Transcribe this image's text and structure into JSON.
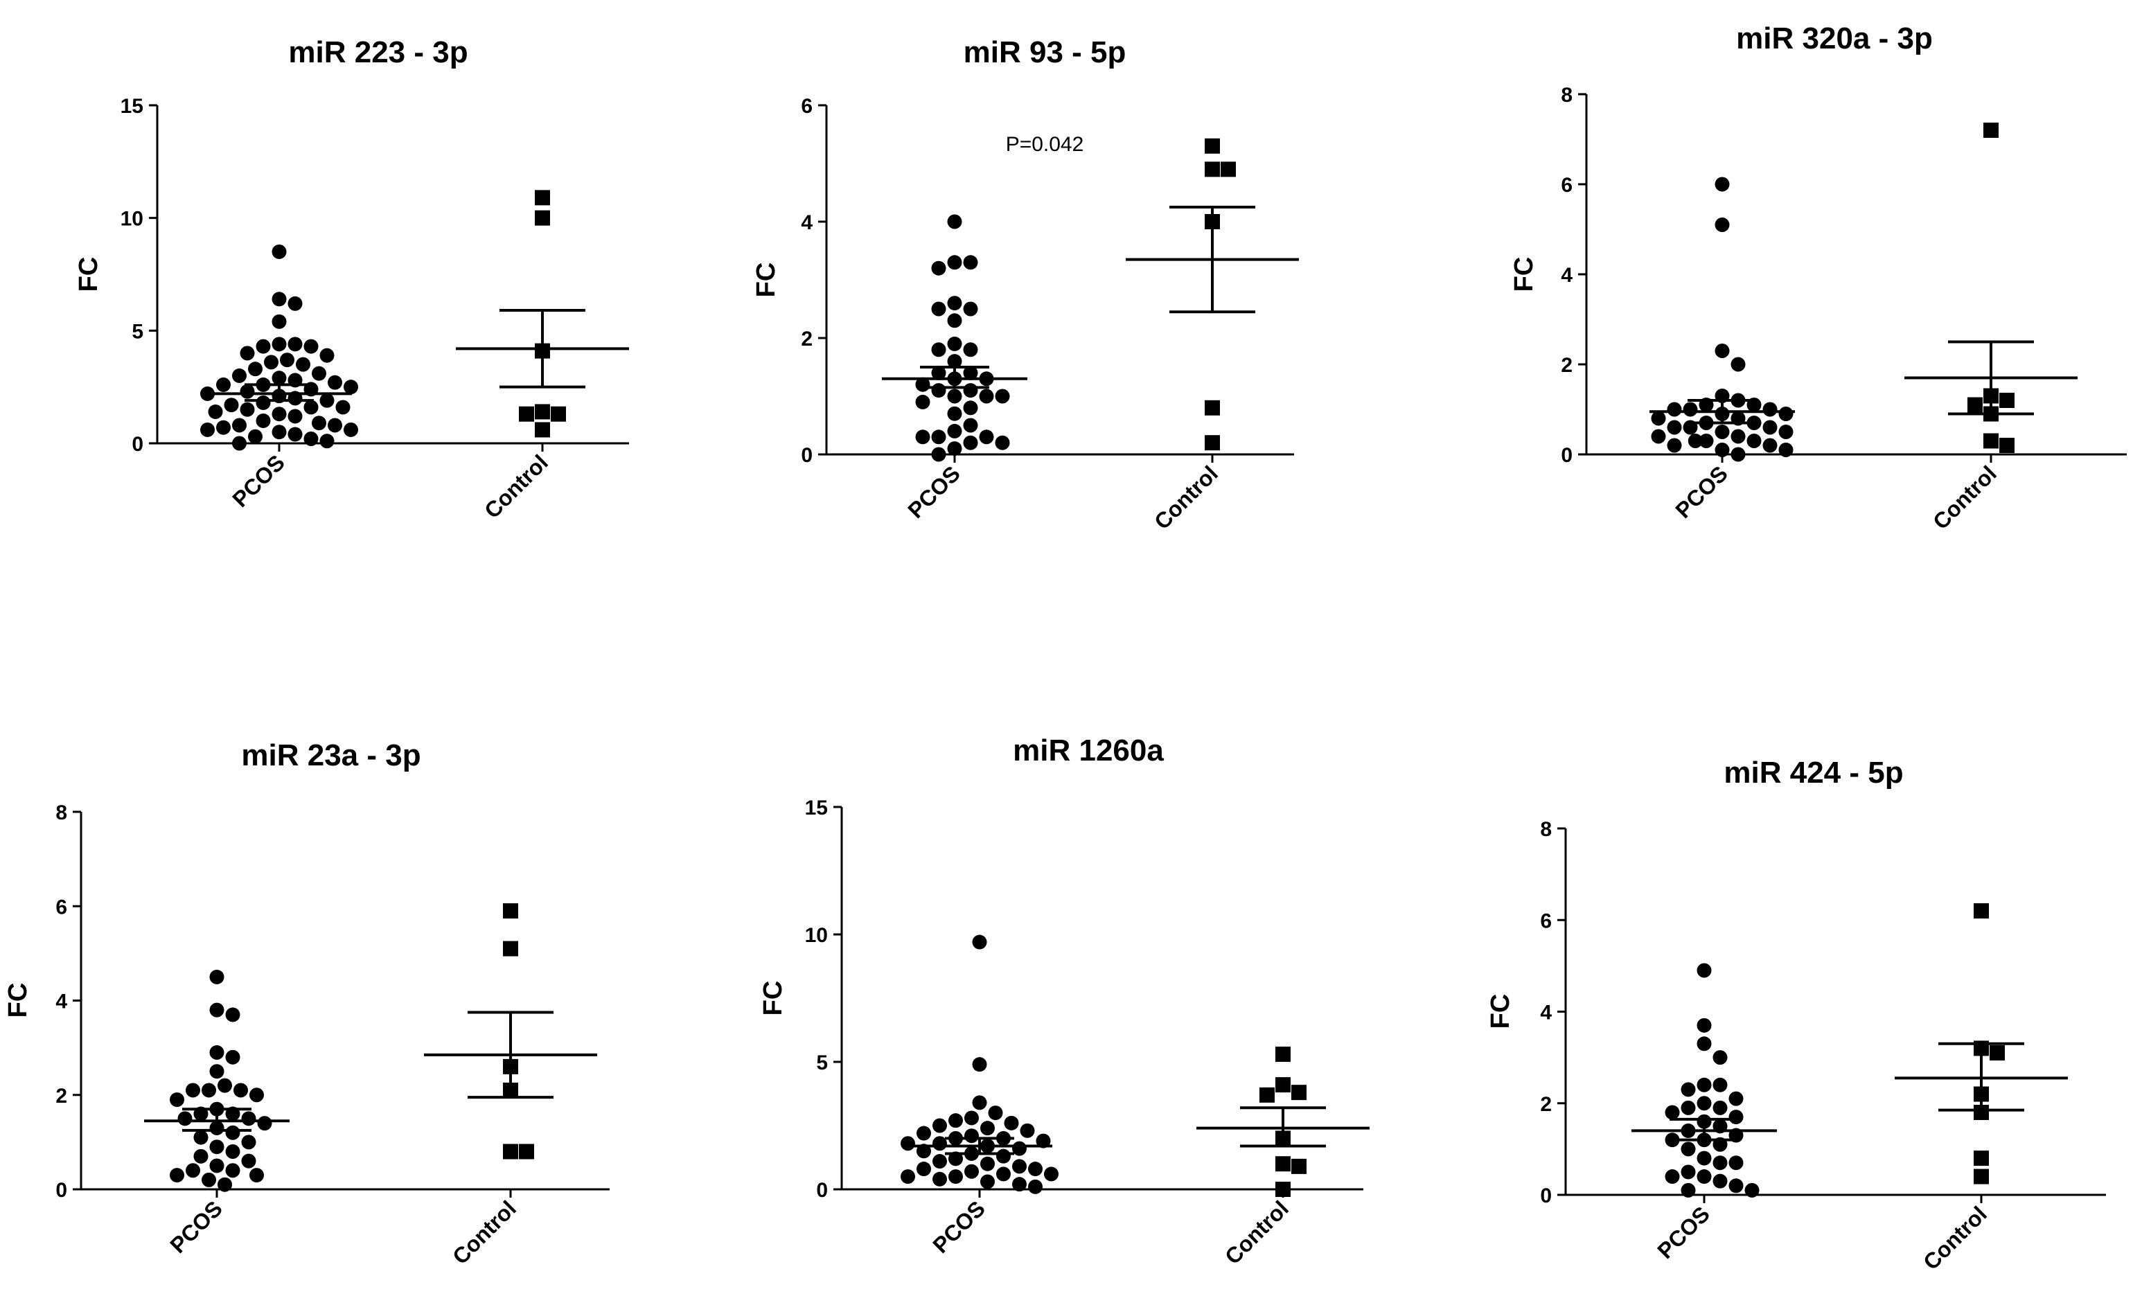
{
  "colors": {
    "ink": "#000000",
    "background": "#ffffff"
  },
  "chart_data": [
    {
      "type": "scatter",
      "title": "miR 223 - 3p",
      "ylabel": "FC",
      "xlabel": "",
      "ylim": [
        0,
        15
      ],
      "yticks": [
        "0",
        "5",
        "10",
        "15"
      ],
      "categories": [
        "PCOS",
        "Control"
      ],
      "groups": [
        {
          "name": "PCOS",
          "marker": "circle",
          "values": [
            8.5,
            6.4,
            6.2,
            5.4,
            4.4,
            4.4,
            4.3,
            4.3,
            4.0,
            3.9,
            3.7,
            3.6,
            3.5,
            3.3,
            3.1,
            3.0,
            2.9,
            2.8,
            2.7,
            2.6,
            2.6,
            2.5,
            2.4,
            2.3,
            2.2,
            2.1,
            2.0,
            1.9,
            1.8,
            1.7,
            1.6,
            1.6,
            1.5,
            1.4,
            1.3,
            1.2,
            1.0,
            0.9,
            0.8,
            0.8,
            0.7,
            0.6,
            0.6,
            0.5,
            0.4,
            0.3,
            0.2,
            0.1,
            0.0
          ],
          "mean": 2.2,
          "sem_low": 1.9,
          "sem_high": 2.6
        },
        {
          "name": "Control",
          "marker": "square",
          "values": [
            10.9,
            10.0,
            4.1,
            1.4,
            1.3,
            1.3,
            0.6
          ],
          "mean": 4.2,
          "sem_low": 2.5,
          "sem_high": 5.9
        }
      ],
      "annotation": ""
    },
    {
      "type": "scatter",
      "title": "miR 93 - 5p",
      "ylabel": "FC",
      "xlabel": "",
      "ylim": [
        0,
        6
      ],
      "yticks": [
        "0",
        "2",
        "4",
        "6"
      ],
      "categories": [
        "PCOS",
        "Control"
      ],
      "groups": [
        {
          "name": "PCOS",
          "marker": "circle",
          "values": [
            4.0,
            3.3,
            3.3,
            3.2,
            2.6,
            2.5,
            2.5,
            2.3,
            1.9,
            1.8,
            1.8,
            1.6,
            1.4,
            1.4,
            1.3,
            1.3,
            1.2,
            1.1,
            1.1,
            1.0,
            1.0,
            1.0,
            0.9,
            0.8,
            0.7,
            0.5,
            0.4,
            0.3,
            0.3,
            0.3,
            0.2,
            0.2,
            0.1,
            0.0
          ],
          "mean": 1.3,
          "sem_low": 1.15,
          "sem_high": 1.5
        },
        {
          "name": "Control",
          "marker": "square",
          "values": [
            5.3,
            4.9,
            4.9,
            4.0,
            0.8,
            0.2
          ],
          "mean": 3.35,
          "sem_low": 2.45,
          "sem_high": 4.25
        }
      ],
      "annotation": "P=0.042"
    },
    {
      "type": "scatter",
      "title": "miR 320a - 3p",
      "ylabel": "FC",
      "xlabel": "",
      "ylim": [
        0,
        8
      ],
      "yticks": [
        "0",
        "2",
        "4",
        "6",
        "8"
      ],
      "categories": [
        "PCOS",
        "Control"
      ],
      "groups": [
        {
          "name": "PCOS",
          "marker": "circle",
          "values": [
            6.0,
            5.1,
            2.3,
            2.0,
            1.3,
            1.2,
            1.1,
            1.1,
            1.0,
            1.0,
            1.0,
            0.9,
            0.9,
            0.8,
            0.8,
            0.7,
            0.7,
            0.6,
            0.6,
            0.6,
            0.5,
            0.5,
            0.4,
            0.4,
            0.3,
            0.3,
            0.3,
            0.2,
            0.2,
            0.1,
            0.1,
            0.0
          ],
          "mean": 0.95,
          "sem_low": 0.7,
          "sem_high": 1.2
        },
        {
          "name": "Control",
          "marker": "square",
          "values": [
            7.2,
            1.3,
            1.2,
            1.1,
            0.9,
            0.3,
            0.2
          ],
          "mean": 1.7,
          "sem_low": 0.9,
          "sem_high": 2.5
        }
      ],
      "annotation": ""
    },
    {
      "type": "scatter",
      "title": "miR 23a - 3p",
      "ylabel": "FC",
      "xlabel": "",
      "ylim": [
        0,
        8
      ],
      "yticks": [
        "0",
        "2",
        "4",
        "6",
        "8"
      ],
      "categories": [
        "PCOS",
        "Control"
      ],
      "groups": [
        {
          "name": "PCOS",
          "marker": "circle",
          "values": [
            4.5,
            3.8,
            3.7,
            2.9,
            2.8,
            2.5,
            2.2,
            2.1,
            2.1,
            2.1,
            2.0,
            1.9,
            1.7,
            1.6,
            1.6,
            1.5,
            1.5,
            1.4,
            1.3,
            1.2,
            1.1,
            1.0,
            0.9,
            0.8,
            0.7,
            0.6,
            0.5,
            0.4,
            0.4,
            0.3,
            0.3,
            0.2,
            0.1
          ],
          "mean": 1.45,
          "sem_low": 1.25,
          "sem_high": 1.7
        },
        {
          "name": "Control",
          "marker": "square",
          "values": [
            5.9,
            5.1,
            2.6,
            2.1,
            0.8,
            0.8
          ],
          "mean": 2.85,
          "sem_low": 1.95,
          "sem_high": 3.75
        }
      ],
      "annotation": ""
    },
    {
      "type": "scatter",
      "title": "miR 1260a",
      "ylabel": "FC",
      "xlabel": "",
      "ylim": [
        0,
        15
      ],
      "yticks": [
        "0",
        "5",
        "10",
        "15"
      ],
      "categories": [
        "PCOS",
        "Control"
      ],
      "groups": [
        {
          "name": "PCOS",
          "marker": "circle",
          "values": [
            9.7,
            4.9,
            3.4,
            3.0,
            2.8,
            2.7,
            2.6,
            2.5,
            2.4,
            2.3,
            2.2,
            2.1,
            2.0,
            2.0,
            1.9,
            1.8,
            1.8,
            1.7,
            1.6,
            1.5,
            1.4,
            1.3,
            1.2,
            1.1,
            1.0,
            0.9,
            0.8,
            0.8,
            0.7,
            0.6,
            0.6,
            0.5,
            0.5,
            0.4,
            0.3,
            0.2,
            0.1
          ],
          "mean": 1.7,
          "sem_low": 1.4,
          "sem_high": 2.0
        },
        {
          "name": "Control",
          "marker": "square",
          "values": [
            5.3,
            4.1,
            3.8,
            3.7,
            2.0,
            1.0,
            0.9,
            0.0
          ],
          "mean": 2.4,
          "sem_low": 1.7,
          "sem_high": 3.2
        }
      ],
      "annotation": ""
    },
    {
      "type": "scatter",
      "title": "miR 424 - 5p",
      "ylabel": "FC",
      "xlabel": "",
      "ylim": [
        0,
        8
      ],
      "yticks": [
        "0",
        "2",
        "4",
        "6",
        "8"
      ],
      "categories": [
        "PCOS",
        "Control"
      ],
      "groups": [
        {
          "name": "PCOS",
          "marker": "circle",
          "values": [
            4.9,
            3.7,
            3.3,
            3.0,
            2.4,
            2.4,
            2.3,
            2.1,
            2.0,
            1.9,
            1.9,
            1.8,
            1.7,
            1.6,
            1.5,
            1.4,
            1.3,
            1.2,
            1.2,
            1.1,
            1.0,
            0.8,
            0.7,
            0.7,
            0.5,
            0.4,
            0.4,
            0.3,
            0.2,
            0.1,
            0.1
          ],
          "mean": 1.4,
          "sem_low": 1.2,
          "sem_high": 1.65
        },
        {
          "name": "Control",
          "marker": "square",
          "values": [
            6.2,
            3.2,
            3.1,
            2.2,
            1.8,
            0.8,
            0.4
          ],
          "mean": 2.55,
          "sem_low": 1.85,
          "sem_high": 3.3
        }
      ],
      "annotation": ""
    }
  ]
}
